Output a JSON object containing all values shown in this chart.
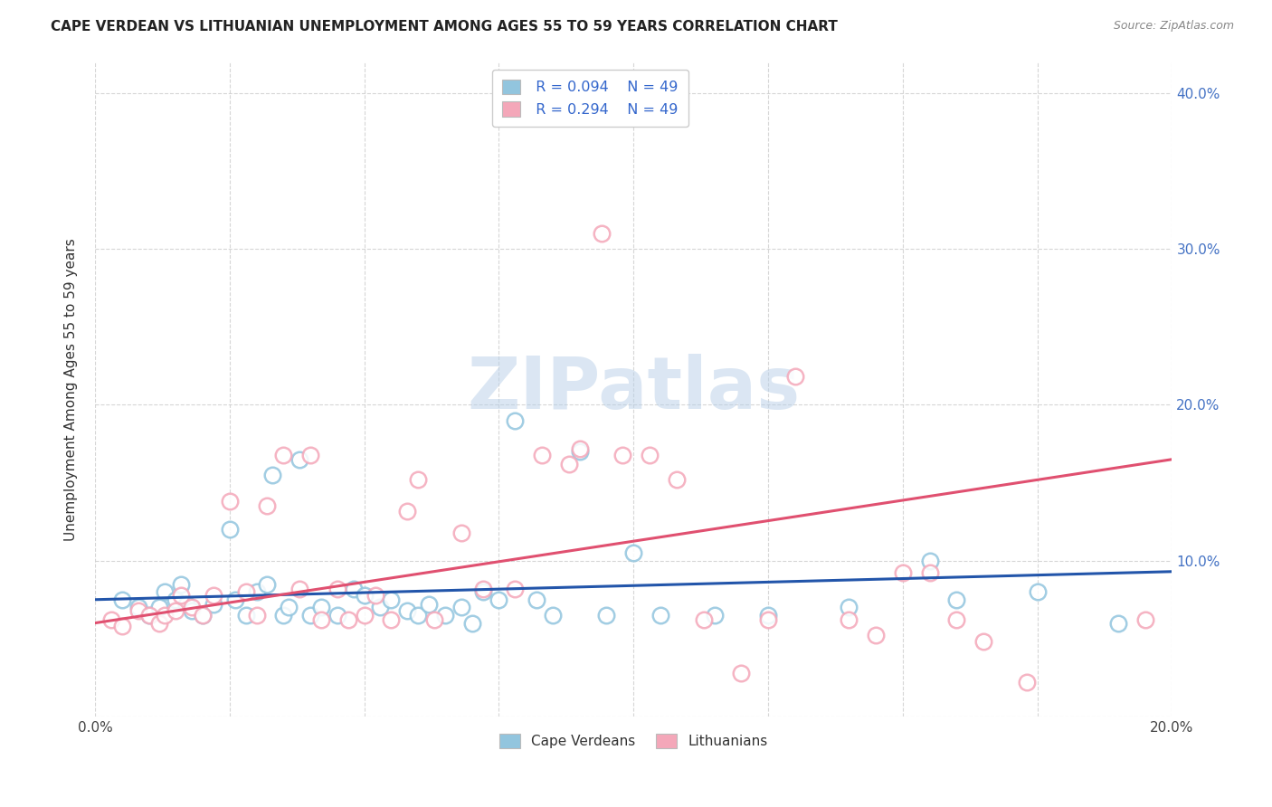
{
  "title": "CAPE VERDEAN VS LITHUANIAN UNEMPLOYMENT AMONG AGES 55 TO 59 YEARS CORRELATION CHART",
  "source": "Source: ZipAtlas.com",
  "ylabel": "Unemployment Among Ages 55 to 59 years",
  "xlim": [
    0.0,
    0.2
  ],
  "ylim": [
    0.0,
    0.42
  ],
  "x_ticks": [
    0.0,
    0.025,
    0.05,
    0.075,
    0.1,
    0.125,
    0.15,
    0.175,
    0.2
  ],
  "x_tick_labels_show": [
    "0.0%",
    "",
    "",
    "",
    "",
    "",
    "",
    "",
    "20.0%"
  ],
  "y_ticks": [
    0.0,
    0.1,
    0.2,
    0.3,
    0.4
  ],
  "y_tick_labels": [
    "",
    "10.0%",
    "20.0%",
    "30.0%",
    "40.0%"
  ],
  "legend_labels": [
    "Cape Verdeans",
    "Lithuanians"
  ],
  "legend_R": [
    "R = 0.094",
    "R = 0.294"
  ],
  "legend_N": [
    "N = 49",
    "N = 49"
  ],
  "blue_color": "#92c5de",
  "pink_color": "#f4a7b9",
  "line_blue": "#2255aa",
  "line_pink": "#e05070",
  "watermark_text": "ZIPatlas",
  "blue_scatter_x": [
    0.005,
    0.008,
    0.01,
    0.012,
    0.013,
    0.015,
    0.016,
    0.017,
    0.018,
    0.02,
    0.022,
    0.025,
    0.026,
    0.028,
    0.03,
    0.032,
    0.033,
    0.035,
    0.036,
    0.038,
    0.04,
    0.042,
    0.045,
    0.048,
    0.05,
    0.053,
    0.055,
    0.058,
    0.06,
    0.062,
    0.065,
    0.068,
    0.07,
    0.072,
    0.075,
    0.078,
    0.082,
    0.085,
    0.09,
    0.095,
    0.1,
    0.105,
    0.115,
    0.125,
    0.14,
    0.155,
    0.16,
    0.175,
    0.19
  ],
  "blue_scatter_y": [
    0.075,
    0.07,
    0.065,
    0.07,
    0.08,
    0.075,
    0.085,
    0.072,
    0.068,
    0.065,
    0.072,
    0.12,
    0.075,
    0.065,
    0.08,
    0.085,
    0.155,
    0.065,
    0.07,
    0.165,
    0.065,
    0.07,
    0.065,
    0.082,
    0.078,
    0.07,
    0.075,
    0.068,
    0.065,
    0.072,
    0.065,
    0.07,
    0.06,
    0.08,
    0.075,
    0.19,
    0.075,
    0.065,
    0.17,
    0.065,
    0.105,
    0.065,
    0.065,
    0.065,
    0.07,
    0.1,
    0.075,
    0.08,
    0.06
  ],
  "pink_scatter_x": [
    0.003,
    0.005,
    0.008,
    0.01,
    0.012,
    0.013,
    0.015,
    0.016,
    0.018,
    0.02,
    0.022,
    0.025,
    0.028,
    0.03,
    0.032,
    0.035,
    0.038,
    0.04,
    0.042,
    0.045,
    0.047,
    0.05,
    0.052,
    0.055,
    0.058,
    0.06,
    0.063,
    0.068,
    0.072,
    0.078,
    0.083,
    0.088,
    0.09,
    0.094,
    0.098,
    0.103,
    0.108,
    0.113,
    0.12,
    0.125,
    0.13,
    0.14,
    0.145,
    0.15,
    0.155,
    0.16,
    0.165,
    0.173,
    0.195
  ],
  "pink_scatter_y": [
    0.062,
    0.058,
    0.068,
    0.065,
    0.06,
    0.065,
    0.068,
    0.078,
    0.07,
    0.065,
    0.078,
    0.138,
    0.08,
    0.065,
    0.135,
    0.168,
    0.082,
    0.168,
    0.062,
    0.082,
    0.062,
    0.065,
    0.078,
    0.062,
    0.132,
    0.152,
    0.062,
    0.118,
    0.082,
    0.082,
    0.168,
    0.162,
    0.172,
    0.31,
    0.168,
    0.168,
    0.152,
    0.062,
    0.028,
    0.062,
    0.218,
    0.062,
    0.052,
    0.092,
    0.092,
    0.062,
    0.048,
    0.022,
    0.062
  ],
  "blue_line_x": [
    0.0,
    0.2
  ],
  "blue_line_y": [
    0.075,
    0.093
  ],
  "pink_line_x": [
    0.0,
    0.2
  ],
  "pink_line_y": [
    0.06,
    0.165
  ]
}
